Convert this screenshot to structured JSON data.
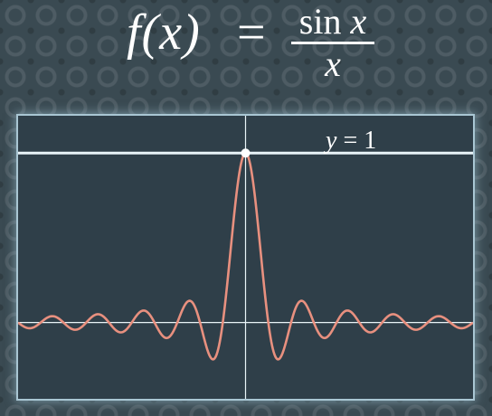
{
  "formula": {
    "lhs": "f(x)",
    "equals": "=",
    "numerator_fn": "sin",
    "numerator_var": "x",
    "denominator": "x"
  },
  "chart_data": {
    "type": "line",
    "title": "f(x) = sin x / x",
    "function": "sin(x)/x",
    "xlim": [
      -31.4,
      31.4
    ],
    "ylim": [
      -0.45,
      1.22
    ],
    "grid": false,
    "axes": {
      "x_axis_at_y": 0,
      "y_axis_at_x": 0
    },
    "series": [
      {
        "x": [
          -31.4,
          -28.3,
          -25.1,
          -22.0,
          -18.8,
          -15.7,
          -12.6,
          -9.42,
          -6.28,
          -4.49,
          -3.14,
          0,
          3.14,
          4.49,
          6.28,
          9.42,
          12.6,
          15.7,
          18.8,
          22.0,
          25.1,
          28.3,
          31.4
        ],
        "y": [
          0,
          0.05,
          0,
          0.045,
          0,
          0.06,
          0,
          -0.11,
          0,
          -0.217,
          0,
          1,
          0,
          -0.217,
          0,
          -0.11,
          0,
          0.06,
          0,
          0.045,
          0,
          0.05,
          0
        ],
        "color": "#e8907f"
      }
    ],
    "reference_line": {
      "y": 1,
      "label_var": "y",
      "label_op": "=",
      "label_value": "1",
      "color": "#e9f4f8"
    },
    "highlight_point": {
      "x": 0,
      "y": 1
    }
  },
  "colors": {
    "curve": "#e8907f",
    "axis": "#e9f4f8",
    "panel": "#2f3f49"
  }
}
